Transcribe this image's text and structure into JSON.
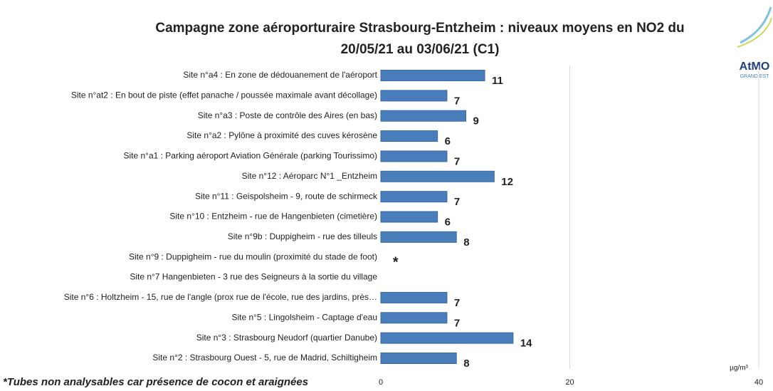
{
  "chart_data": {
    "type": "hbar",
    "title": "Campagne zone aéroporturaire Strasbourg-Entzheim : niveaux moyens en NO2 du",
    "subtitle": "20/05/21 au 03/06/21 (C1)",
    "categories": [
      "Site n°a4 : En zone de dédouanement de l'aéroport",
      "Site n°at2 : En bout de piste (effet panache / poussée maximale avant décollage)",
      "Site n°a3 : Poste de contrôle des Aires (en bas)",
      "Site n°a2 : Pylône à proximité des cuves kérosène",
      "Site n°a1 : Parking aéroport Aviation Générale (parking Tourissimo)",
      "Site n°12 : Aéroparc N°1 _Entzheim",
      "Site n°11 : Geispolsheim - 9, route de schirmeck",
      "Site n°10 : Entzheim - rue de Hangenbieten (cimetière)",
      "Site n°9b : Duppigheim - rue des tilleuls",
      "Site n°9 : Duppigheim - rue du moulin (proximité du stade de foot)",
      "Site n°7  Hangenbieten - 3 rue des Seigneurs à la sortie du village",
      "Site n°6 : Holtzheim - 15, rue de l'angle (prox rue de l'école, rue des jardins, près…",
      "Site n°5 : Lingolsheim - Captage d'eau",
      "Site n°3 : Strasbourg Neudorf (quartier Danube)",
      "Site n°2 : Strasbourg Ouest - 5, rue de Madrid, Schiltigheim"
    ],
    "values": [
      11,
      7,
      9,
      6,
      7,
      12,
      7,
      6,
      8,
      null,
      null,
      7,
      7,
      14,
      8
    ],
    "value_labels": [
      null,
      null,
      null,
      null,
      null,
      null,
      null,
      null,
      null,
      "*",
      null,
      null,
      null,
      null,
      null
    ],
    "color": "#4a7ebb",
    "xlim": [
      0,
      40
    ],
    "xticks": [
      0,
      20,
      40
    ],
    "grid": true,
    "unit": "µg/m³",
    "footnote": "*Tubes non analysables car présence de cocon et araignées",
    "logo": {
      "name": "AtMO",
      "region": "GRAND EST"
    }
  }
}
